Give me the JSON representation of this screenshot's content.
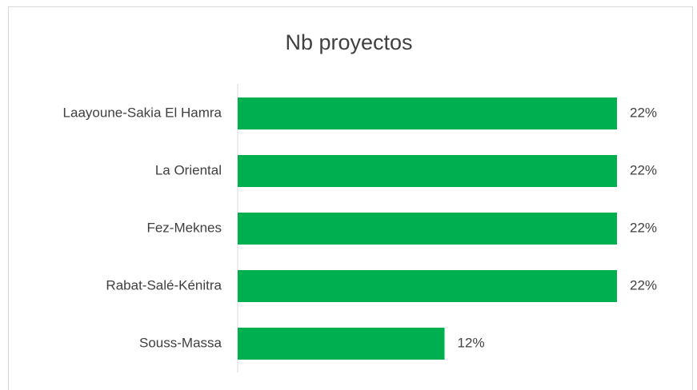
{
  "chart_data": {
    "type": "bar",
    "orientation": "horizontal",
    "title": "Nb proyectos",
    "categories": [
      "Laayoune-Sakia El Hamra",
      "La Oriental",
      "Fez-Meknes",
      "Rabat-Salé-Kénitra",
      "Souss-Massa"
    ],
    "values": [
      22,
      22,
      22,
      22,
      12
    ],
    "value_labels": [
      "22%",
      "22%",
      "22%",
      "22%",
      "12%"
    ],
    "color": "#00b050"
  }
}
